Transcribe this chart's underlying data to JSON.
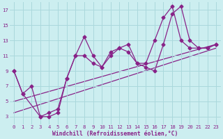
{
  "xlabel": "Windchill (Refroidissement éolien,°C)",
  "background_color": "#cceef0",
  "grid_color": "#aad8dc",
  "line_color": "#882288",
  "xlim": [
    -0.5,
    23.5
  ],
  "ylim": [
    2,
    18
  ],
  "xticks": [
    0,
    1,
    2,
    3,
    4,
    5,
    6,
    7,
    8,
    9,
    10,
    11,
    12,
    13,
    14,
    15,
    16,
    17,
    18,
    19,
    20,
    21,
    22,
    23
  ],
  "yticks": [
    3,
    5,
    7,
    9,
    11,
    13,
    15,
    17
  ],
  "series1_x": [
    0,
    1,
    2,
    3,
    4,
    5,
    6,
    7,
    8,
    9,
    10,
    11,
    12,
    13,
    14,
    15,
    16,
    17,
    18,
    19,
    20,
    21,
    22,
    23
  ],
  "series1_y": [
    9,
    6,
    7,
    3,
    3,
    3.5,
    8,
    11,
    13.5,
    11,
    9.5,
    11.5,
    12,
    12.5,
    10,
    9.5,
    9,
    12.5,
    16.5,
    17.5,
    13,
    12,
    12,
    12.5
  ],
  "series2_x": [
    0,
    1,
    3,
    4,
    5,
    6,
    7,
    8,
    9,
    10,
    11,
    12,
    13,
    14,
    15,
    16,
    17,
    18,
    19,
    20,
    21,
    22,
    23
  ],
  "series2_y": [
    9,
    6,
    3,
    3.5,
    4,
    8,
    11,
    11,
    10,
    9.5,
    11,
    12,
    11.5,
    10,
    10,
    13,
    16,
    17.5,
    13,
    12,
    12,
    12,
    12.5
  ],
  "trend1_x": [
    0,
    23
  ],
  "trend1_y": [
    3.5,
    12.0
  ],
  "trend2_x": [
    0,
    23
  ],
  "trend2_y": [
    5.0,
    12.5
  ],
  "markersize": 2.5,
  "linewidth": 0.9,
  "tick_fontsize": 5.2,
  "xlabel_fontsize": 5.8
}
